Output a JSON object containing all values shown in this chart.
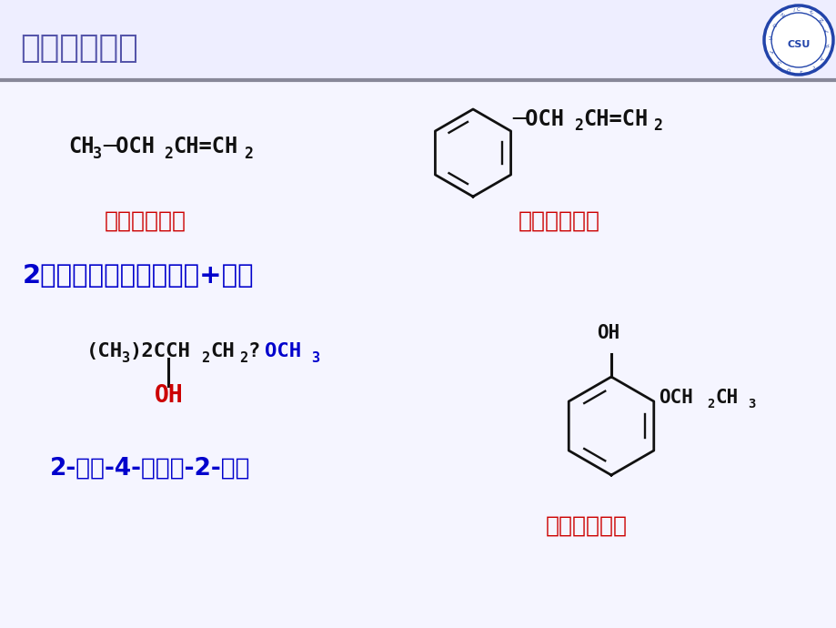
{
  "title": "（二）命　名",
  "title_color": "#5555aa",
  "bg_color": "#eeeeff",
  "slide_bg": "#f5f5ff",
  "red_color": "#cc0000",
  "blue_color": "#0000cc",
  "black_color": "#111111",
  "label1": "甲基烯丙基醚",
  "label2": "苯基烯丙基醚",
  "label3": "2、系统命名法：烷氧基+母体",
  "label4": "2-甲基-4-甲氧基-2-丁醇",
  "label5": "间乙氧基苯酚",
  "sep_color": "#888899",
  "logo_color": "#2244aa"
}
